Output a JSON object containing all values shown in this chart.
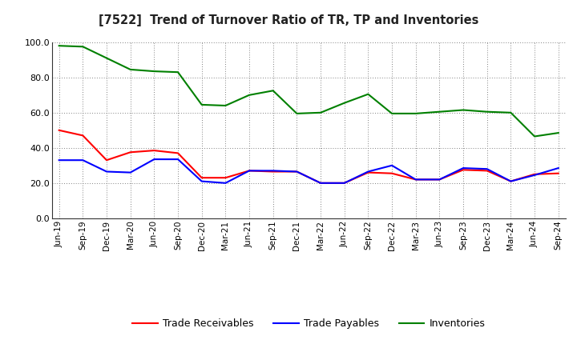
{
  "title": "[7522]  Trend of Turnover Ratio of TR, TP and Inventories",
  "x_labels": [
    "Jun-19",
    "Sep-19",
    "Dec-19",
    "Mar-20",
    "Jun-20",
    "Sep-20",
    "Dec-20",
    "Mar-21",
    "Jun-21",
    "Sep-21",
    "Dec-21",
    "Mar-22",
    "Jun-22",
    "Sep-22",
    "Dec-22",
    "Mar-23",
    "Jun-23",
    "Sep-23",
    "Dec-23",
    "Mar-24",
    "Jun-24",
    "Sep-24"
  ],
  "trade_receivables": [
    50.0,
    47.0,
    33.0,
    37.5,
    38.5,
    37.0,
    23.0,
    23.0,
    27.0,
    26.5,
    26.5,
    20.0,
    20.0,
    26.0,
    25.5,
    22.0,
    22.0,
    27.5,
    27.0,
    21.0,
    25.0,
    25.5
  ],
  "trade_payables": [
    33.0,
    33.0,
    26.5,
    26.0,
    33.5,
    33.5,
    21.0,
    20.0,
    27.0,
    27.0,
    26.5,
    20.0,
    20.0,
    26.5,
    30.0,
    22.0,
    22.0,
    28.5,
    28.0,
    21.0,
    24.5,
    28.5
  ],
  "inventories": [
    98.0,
    97.5,
    91.0,
    84.5,
    83.5,
    83.0,
    64.5,
    64.0,
    70.0,
    72.5,
    59.5,
    60.0,
    65.5,
    70.5,
    59.5,
    59.5,
    60.5,
    61.5,
    60.5,
    60.0,
    46.5,
    48.5
  ],
  "ylim": [
    0.0,
    100.0
  ],
  "yticks": [
    0.0,
    20.0,
    40.0,
    60.0,
    80.0,
    100.0
  ],
  "color_tr": "#ff0000",
  "color_tp": "#0000ff",
  "color_inv": "#008000",
  "legend_tr": "Trade Receivables",
  "legend_tp": "Trade Payables",
  "legend_inv": "Inventories",
  "background_color": "#ffffff",
  "grid_color": "#808080"
}
